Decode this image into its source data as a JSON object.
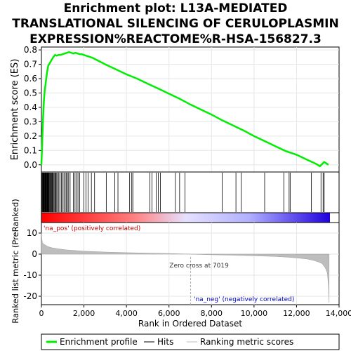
{
  "title_lines": [
    "Enrichment plot: L13A-MEDIATED",
    "TRANSLATIONAL SILENCING OF CERULOPLASMIN",
    "EXPRESSION%REACTOME%R-HSA-156827.3"
  ],
  "legend": {
    "enrichment_profile": "Enrichment profile",
    "hits": "Hits",
    "ranking_metric": "Ranking metric scores"
  },
  "colors": {
    "profile": "#00ee00",
    "hits": "#000000",
    "metric_fill": "#bdbdbd",
    "zero_cross": "#aaaaaa",
    "pos_label": "#cc0000",
    "neg_label": "#0000cc"
  },
  "chart_data": [
    {
      "type": "line",
      "name": "enrichment-profile",
      "ylabel": "Enrichment score (ES)",
      "xlim": [
        0,
        14000
      ],
      "ylim": [
        -0.05,
        0.82
      ],
      "yticks": [
        "0.0",
        "0.1",
        "0.2",
        "0.3",
        "0.4",
        "0.5",
        "0.6",
        "0.7",
        "0.8"
      ],
      "ytick_values": [
        0.0,
        0.1,
        0.2,
        0.3,
        0.4,
        0.5,
        0.6,
        0.7,
        0.8
      ],
      "grid": true,
      "x": [
        0,
        40,
        80,
        120,
        160,
        200,
        260,
        320,
        400,
        480,
        560,
        640,
        720,
        800,
        900,
        1000,
        1100,
        1200,
        1300,
        1400,
        1500,
        1600,
        1700,
        1800,
        1900,
        2000,
        2200,
        2400,
        2600,
        2800,
        3000,
        3500,
        4000,
        4500,
        5000,
        5500,
        6000,
        6500,
        7000,
        7500,
        8000,
        8500,
        9000,
        9500,
        10000,
        10500,
        11000,
        11500,
        12000,
        12500,
        12800,
        13000,
        13100,
        13200,
        13300,
        13400,
        13500
      ],
      "y": [
        0.0,
        0.17,
        0.33,
        0.45,
        0.52,
        0.57,
        0.64,
        0.69,
        0.71,
        0.73,
        0.75,
        0.765,
        0.76,
        0.765,
        0.765,
        0.77,
        0.775,
        0.78,
        0.785,
        0.78,
        0.775,
        0.78,
        0.775,
        0.77,
        0.77,
        0.765,
        0.755,
        0.745,
        0.73,
        0.715,
        0.7,
        0.665,
        0.63,
        0.6,
        0.565,
        0.53,
        0.495,
        0.46,
        0.42,
        0.385,
        0.35,
        0.31,
        0.275,
        0.24,
        0.2,
        0.165,
        0.13,
        0.095,
        0.07,
        0.035,
        0.015,
        0.0,
        -0.01,
        0.005,
        0.02,
        0.01,
        0.0
      ]
    },
    {
      "type": "scatter",
      "name": "hits",
      "xlim": [
        0,
        14000
      ],
      "hit_positions": [
        10,
        30,
        50,
        70,
        90,
        110,
        130,
        150,
        170,
        190,
        210,
        230,
        250,
        270,
        290,
        310,
        330,
        350,
        380,
        410,
        440,
        470,
        500,
        530,
        560,
        600,
        640,
        680,
        720,
        770,
        820,
        880,
        940,
        1000,
        1060,
        1120,
        1180,
        1220,
        1280,
        1350,
        1500,
        1580,
        1650,
        1720,
        1800,
        2000,
        2100,
        2200,
        2350,
        2500,
        3050,
        3450,
        3600,
        4150,
        4250,
        4300,
        5100,
        5200,
        5400,
        5500,
        5600,
        6300,
        6500,
        6750,
        8500,
        9150,
        9400,
        10500,
        11400,
        11650,
        11700,
        12700,
        13150,
        13250,
        13300
      ]
    },
    {
      "type": "area",
      "name": "ranking-metric",
      "ylabel": "Ranked list metric (PreRanked)",
      "xlabel": "Rank in Ordered Dataset",
      "xlim": [
        0,
        14000
      ],
      "ylim": [
        -24,
        15
      ],
      "yticks": [
        "10",
        "0",
        "-10",
        "-20"
      ],
      "ytick_values": [
        10,
        0,
        -10,
        -20
      ],
      "xticks": [
        "0",
        "2,000",
        "4,000",
        "6,000",
        "8,000",
        "10,000",
        "12,000",
        "14,000"
      ],
      "xtick_values": [
        0,
        2000,
        4000,
        6000,
        8000,
        10000,
        12000,
        14000
      ],
      "x": [
        0,
        20,
        50,
        100,
        200,
        300,
        500,
        800,
        1200,
        1600,
        2000,
        3000,
        4000,
        5000,
        6000,
        7019,
        8000,
        9000,
        10000,
        11000,
        11500,
        12000,
        12500,
        12800,
        13000,
        13200,
        13350,
        13450,
        13500,
        13530
      ],
      "y": [
        10,
        7,
        5.5,
        4.8,
        4.2,
        3.6,
        3.0,
        2.5,
        2.0,
        1.7,
        1.4,
        1.0,
        0.7,
        0.5,
        0.3,
        0.0,
        -0.3,
        -0.5,
        -0.8,
        -1.1,
        -1.4,
        -1.8,
        -2.3,
        -3.0,
        -3.6,
        -4.5,
        -6.5,
        -9.0,
        -15.0,
        -23.0
      ],
      "zero_cross_rank": 7019,
      "zero_cross_label": "Zero cross at 7019",
      "pos_label": "'na_pos' (positively correlated)",
      "neg_label": "'na_neg' (negatively correlated)"
    }
  ]
}
